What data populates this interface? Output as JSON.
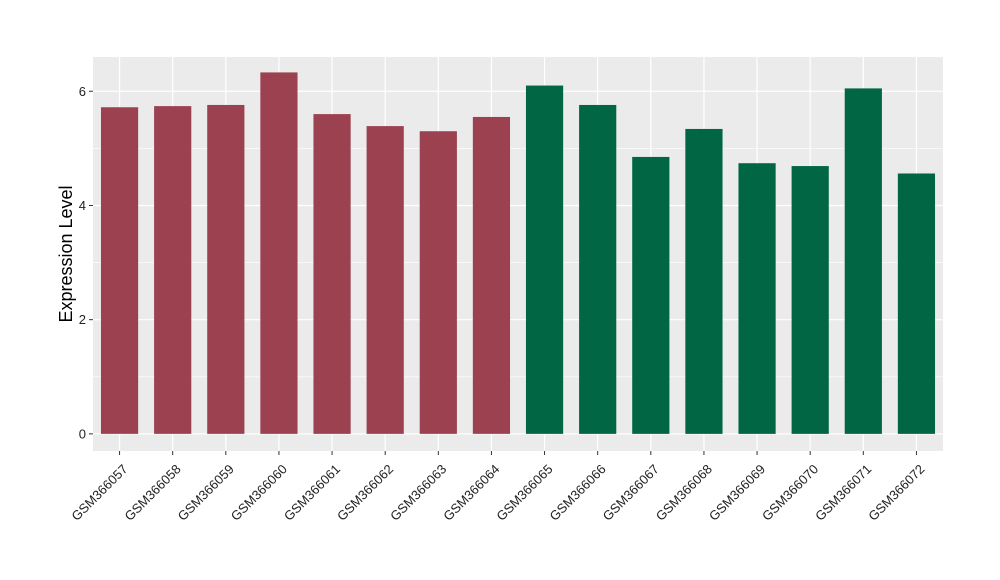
{
  "chart_data": {
    "type": "bar",
    "title": "",
    "xlabel": "",
    "ylabel": "Expression Level",
    "ylim": [
      -0.3,
      6.6
    ],
    "yticks": [
      0,
      2,
      4,
      6
    ],
    "grid": true,
    "categories": [
      "GSM366057",
      "GSM366058",
      "GSM366059",
      "GSM366060",
      "GSM366061",
      "GSM366062",
      "GSM366063",
      "GSM366064",
      "GSM366065",
      "GSM366066",
      "GSM366067",
      "GSM366068",
      "GSM366069",
      "GSM366070",
      "GSM366071",
      "GSM366072"
    ],
    "values": [
      5.72,
      5.74,
      5.76,
      6.33,
      5.6,
      5.39,
      5.3,
      5.55,
      6.1,
      5.76,
      4.85,
      5.34,
      4.74,
      4.69,
      6.05,
      4.56
    ],
    "groups": [
      0,
      0,
      0,
      0,
      0,
      0,
      0,
      0,
      1,
      1,
      1,
      1,
      1,
      1,
      1,
      1
    ],
    "colors": {
      "group_0": "#9b414f",
      "group_1": "#006644",
      "panel_background": "#ebebeb",
      "grid_major": "#ffffff"
    }
  }
}
